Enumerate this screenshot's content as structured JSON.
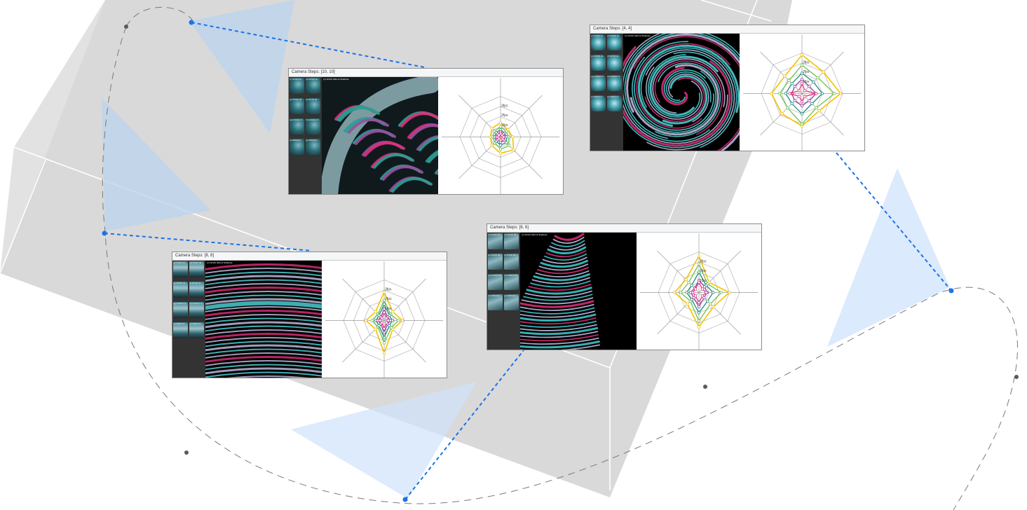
{
  "panels": [
    {
      "id": "panel-10",
      "title": "Camera Steps: [10, 10]",
      "thumb_labels": [
        "(c) Schritt ub...",
        "(d) Schritt ub...",
        "(e) Schritt ub...",
        "(f) Schritt ub...",
        "(g) ambient O...",
        "(h) ambient O...",
        "(i) Halbtrans...",
        "(j) Halbtrans..."
      ],
      "viewport_label": "(o) Schritt without Shadows",
      "radar": {
        "tick_labels": [
          "3fps",
          "2fps",
          "1fps"
        ],
        "series_count": 5
      },
      "theme": "dense"
    },
    {
      "id": "panel-4",
      "title": "Camera Steps: [4, 4]",
      "thumb_labels": [
        "(c) Schritt ub...",
        "(d) Schritt ub...",
        "(e) Schritt ub...",
        "(f) Schritt ub...",
        "(g) ambient O...",
        "(h) ambient O...",
        "(i) Halbtrans...",
        "(j) Halbtrans..."
      ],
      "viewport_label": "(o) Schritt without Shadows",
      "radar": {
        "tick_labels": [
          "3fps",
          "2fps",
          "1fps"
        ],
        "series_count": 5
      },
      "theme": "vortex"
    },
    {
      "id": "panel-8",
      "title": "Camera Steps: [8, 8]",
      "thumb_labels": [
        "(c) Schritt ub...",
        "(d) Schritt ub...",
        "(e) Schritt ub...",
        "(f) Schritt ub...",
        "(g) ambient O...",
        "(h) ambient O...",
        "(i) Halbtrans...",
        "(j) Halbtrans..."
      ],
      "viewport_label": "(o) Schritt without Shadows",
      "radar": {
        "tick_labels": [
          "3fps",
          "2fps",
          "1fps"
        ],
        "series_count": 5
      },
      "theme": "bands"
    },
    {
      "id": "panel-6",
      "title": "Camera Steps: [6, 6]",
      "thumb_labels": [
        "(c) Schritt ub...",
        "(d) Schritt ub...",
        "(e) Schritt ub...",
        "(f) Schritt ub...",
        "(g) ambient O...",
        "(h) ambient O...",
        "(i) Halbtrans...",
        "(j) Halbtrans..."
      ],
      "viewport_label": "(o) Schritt without Shadows",
      "radar": {
        "tick_labels": [
          "3fps",
          "2fps",
          "1fps"
        ],
        "series_count": 5
      },
      "theme": "tornado"
    }
  ],
  "colors": {
    "background": "#ffffff",
    "slab": "#d9d9d9",
    "slab_edge": "#ffffff",
    "frustum_fill": "#cfe3fb",
    "camera_link": "#1a73e8",
    "camera_path": "#7a7a7a",
    "path_node": "#5a5a5a",
    "series": [
      "#f2c200",
      "#6cc24a",
      "#1f8a7a",
      "#8a3ea0",
      "#e0307a"
    ]
  },
  "icons": {
    "camera-node": "filled-circle",
    "path-node": "filled-circle"
  }
}
